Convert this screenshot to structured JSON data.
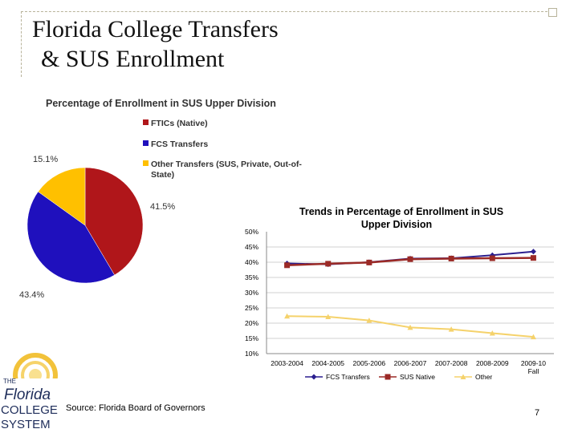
{
  "slide": {
    "title_line1": "Florida College Transfers",
    "title_line2": "& SUS Enrollment",
    "source": "Source: Florida Board of Governors",
    "page_number": "7"
  },
  "logo": {
    "line1": "THE",
    "line2": "Florida",
    "line3": "COLLEGE",
    "line4": "SYSTEM"
  },
  "colors": {
    "ftics": "#b0161a",
    "fcs": "#1f10bd",
    "other": "#ffc000",
    "line_fcs": "#2b1f8f",
    "line_sus": "#9b2a26",
    "line_other": "#f5d26b",
    "grid": "#d0d0d0"
  },
  "chart_data": [
    {
      "type": "pie",
      "title": "Percentage of Enrollment in SUS Upper Division",
      "categories": [
        "FTICs (Native)",
        "FCS Transfers",
        "Other Transfers (SUS, Private, Out-of-State)"
      ],
      "legend_lines": [
        "FTICs (Native)",
        "FCS Transfers",
        "Other Transfers (SUS, Private, Out-of-",
        "State)"
      ],
      "values": [
        41.5,
        43.4,
        15.1
      ],
      "data_labels": [
        "41.5%",
        "43.4%",
        "15.1%"
      ],
      "legend_position": "top-right"
    },
    {
      "type": "line",
      "title_lines": [
        "Trends in Percentage of Enrollment in SUS",
        "Upper Division"
      ],
      "categories": [
        "2003-2004",
        "2004-2005",
        "2005-2006",
        "2006-2007",
        "2007-2008",
        "2008-2009",
        "2009-10"
      ],
      "last_category_line2": "Fall",
      "series": [
        {
          "name": "FCS Transfers",
          "values": [
            39.6,
            39.3,
            40.0,
            41.2,
            41.3,
            42.3,
            43.5
          ]
        },
        {
          "name": "SUS Native",
          "values": [
            39.0,
            39.5,
            39.9,
            41.0,
            41.2,
            41.3,
            41.4
          ]
        },
        {
          "name": "Other",
          "values": [
            22.3,
            22.1,
            20.9,
            18.6,
            18.0,
            16.7,
            15.5
          ]
        }
      ],
      "y_ticks": [
        "50%",
        "45%",
        "40%",
        "35%",
        "30%",
        "25%",
        "20%",
        "15%",
        "10%"
      ],
      "ylim": [
        10,
        50
      ],
      "grid": "horizontal",
      "legend_position": "bottom"
    }
  ]
}
